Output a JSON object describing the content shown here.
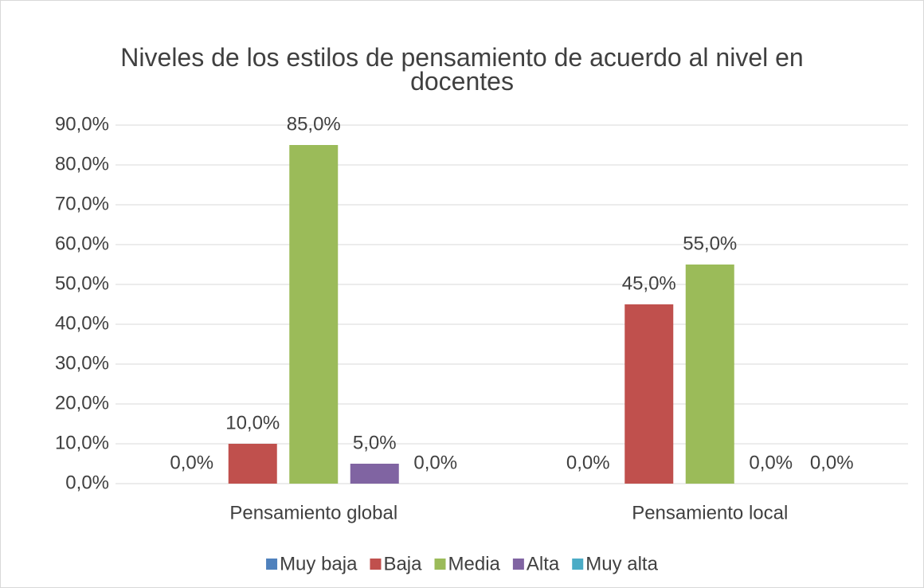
{
  "chart_data": {
    "type": "bar",
    "title": "Niveles de los estilos de pensamiento de acuerdo al nivel en docentes",
    "categories": [
      "Pensamiento global",
      "Pensamiento local"
    ],
    "series": [
      {
        "name": "Muy baja",
        "color": "#4f81bd",
        "values": [
          0,
          0
        ],
        "value_labels": [
          "0,0%",
          "0,0%"
        ]
      },
      {
        "name": "Baja",
        "color": "#c0504d",
        "values": [
          10,
          45
        ],
        "value_labels": [
          "10,0%",
          "45,0%"
        ]
      },
      {
        "name": "Media",
        "color": "#9bbb59",
        "values": [
          85,
          55
        ],
        "value_labels": [
          "85,0%",
          "55,0%"
        ]
      },
      {
        "name": "Alta",
        "color": "#8064a2",
        "values": [
          5,
          0
        ],
        "value_labels": [
          "5,0%",
          "0,0%"
        ]
      },
      {
        "name": "Muy alta",
        "color": "#4bacc6",
        "values": [
          0,
          0
        ],
        "value_labels": [
          "0,0%",
          "0,0%"
        ]
      }
    ],
    "ylim": [
      0,
      90
    ],
    "yticks": [
      {
        "value": 0,
        "label": "0,0%"
      },
      {
        "value": 10,
        "label": "10,0%"
      },
      {
        "value": 20,
        "label": "20,0%"
      },
      {
        "value": 30,
        "label": "30,0%"
      },
      {
        "value": 40,
        "label": "40,0%"
      },
      {
        "value": 50,
        "label": "50,0%"
      },
      {
        "value": 60,
        "label": "60,0%"
      },
      {
        "value": 70,
        "label": "70,0%"
      },
      {
        "value": 80,
        "label": "80,0%"
      },
      {
        "value": 90,
        "label": "90,0%"
      }
    ],
    "grid": true,
    "legend": "bottom"
  }
}
